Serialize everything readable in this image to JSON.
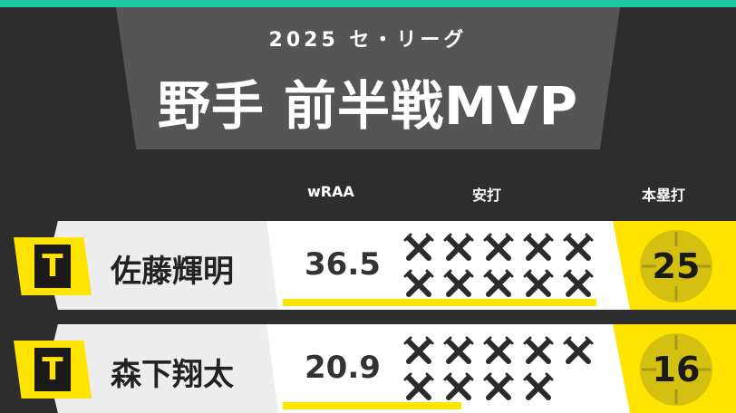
{
  "header": {
    "subtitle": "2025 セ・リーグ",
    "title": "野手 前半戦MVP",
    "accent_color": "#1ec9a6"
  },
  "columns": {
    "wraa": "wRAA",
    "hits": "安打",
    "home_runs": "本塁打"
  },
  "players": [
    {
      "team_badge": "T",
      "name": "佐藤輝明",
      "wraa": "36.5",
      "wraa_bar_fraction": 1.0,
      "hit_icons": 10,
      "home_runs": "25"
    },
    {
      "team_badge": "T",
      "name": "森下翔太",
      "wraa": "20.9",
      "wraa_bar_fraction": 0.57,
      "hit_icons": 9,
      "home_runs": "16"
    }
  ],
  "colors": {
    "background": "#2d2d2d",
    "highlight": "#ffe400"
  },
  "icons": {
    "hit": "crossed-bats-icon",
    "home_run": "crosshair-icon"
  }
}
